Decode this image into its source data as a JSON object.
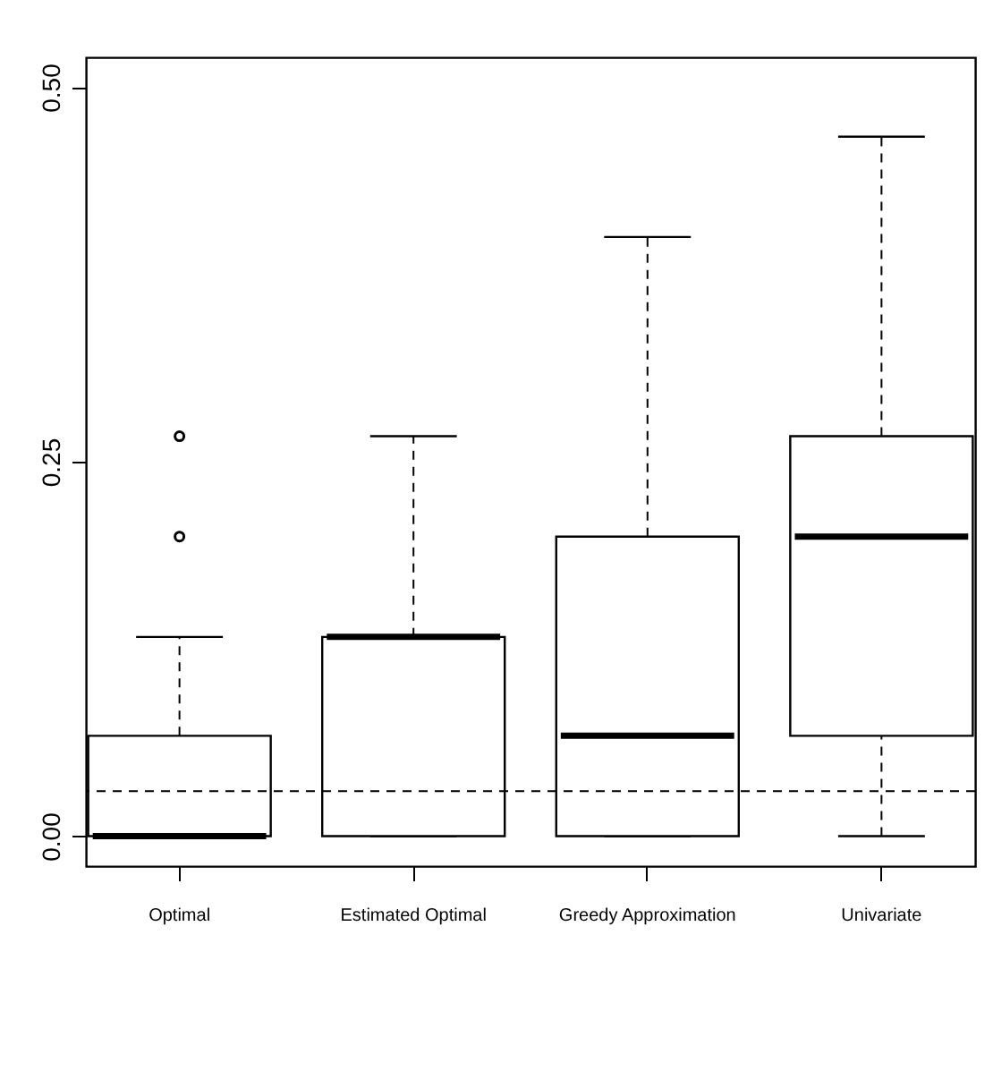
{
  "chart_data": {
    "type": "box",
    "categories": [
      "Optimal",
      "Estimated Optimal",
      "Greedy Approximation",
      "Univariate"
    ],
    "boxes": [
      {
        "low": 0,
        "q1": 0,
        "median": 0,
        "q3": 0.067,
        "high": 0.133,
        "outliers": [
          0.2,
          0.267
        ]
      },
      {
        "low": 0,
        "q1": 0,
        "median": 0.133,
        "q3": 0.133,
        "high": 0.267
      },
      {
        "low": 0,
        "q1": 0,
        "median": 0.067,
        "q3": 0.2,
        "high": 0.4
      },
      {
        "low": 0,
        "q1": 0.067,
        "median": 0.2,
        "q3": 0.267,
        "high": 0.467
      }
    ],
    "ylim": [
      -0.02,
      0.52
    ],
    "yticks": [
      {
        "value": 0,
        "label": "0.00"
      },
      {
        "value": 0.25,
        "label": "0.25"
      },
      {
        "value": 0.5,
        "label": "0.50"
      }
    ],
    "ref_lines": [
      {
        "axis": "y",
        "value": 0.03,
        "line_style": "dashed"
      }
    ],
    "grid": false
  }
}
